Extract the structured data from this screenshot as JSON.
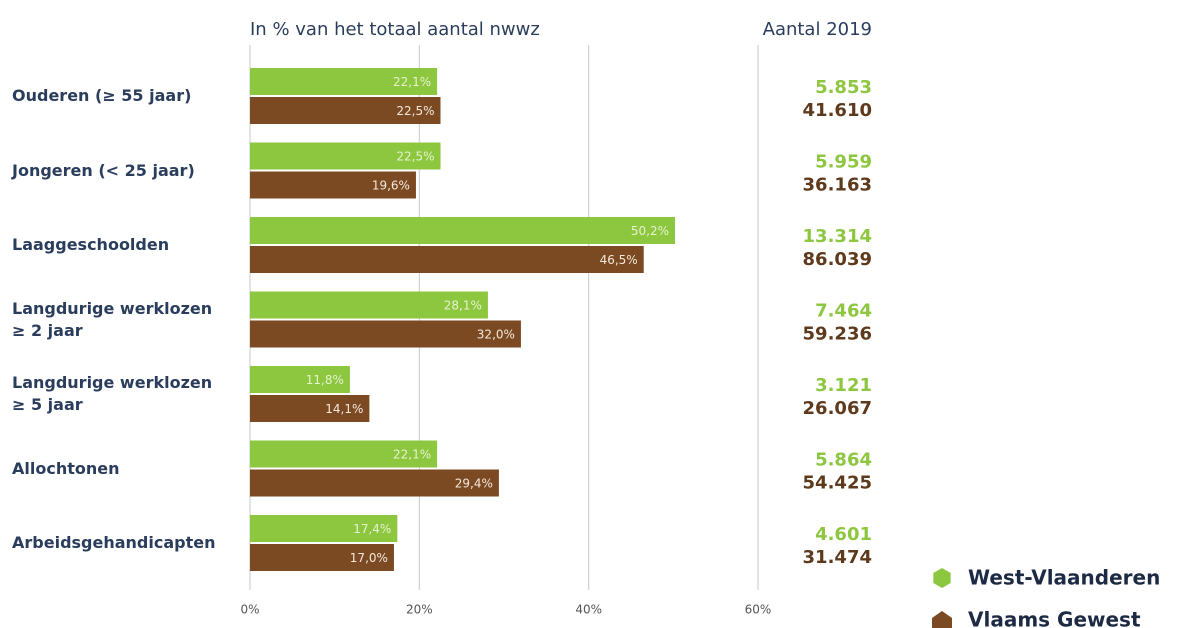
{
  "chart_data": {
    "type": "bar",
    "orientation": "horizontal",
    "subtitle": "In % van het totaal aantal nwwz",
    "count_header": "Aantal 2019",
    "categories": [
      "Ouderen (≥ 55 jaar)",
      "Jongeren (< 25 jaar)",
      "Laaggeschoolden",
      "Langdurige werklozen\n≥ 2 jaar",
      "Langdurige werklozen\n≥ 5 jaar",
      "Allochtonen",
      "Arbeidsgehandicapten"
    ],
    "series": [
      {
        "name": "West-Vlaanderen",
        "color": "#8dc63f",
        "label_color": "#e6f3cf",
        "values": [
          22.1,
          22.5,
          50.2,
          28.1,
          11.8,
          22.1,
          17.4
        ],
        "value_labels": [
          "22,1%",
          "22,5%",
          "50,2%",
          "28,1%",
          "11,8%",
          "22,1%",
          "17,4%"
        ],
        "counts": [
          5853,
          5959,
          13314,
          7464,
          3121,
          5864,
          4601
        ],
        "count_labels": [
          "5.853",
          "5.959",
          "13.314",
          "7.464",
          "3.121",
          "5.864",
          "4.601"
        ]
      },
      {
        "name": "Vlaams Gewest",
        "color": "#7b4a23",
        "label_color": "#f4e8da",
        "values": [
          22.5,
          19.6,
          46.5,
          32.0,
          14.1,
          29.4,
          17.0
        ],
        "value_labels": [
          "22,5%",
          "19,6%",
          "46,5%",
          "32,0%",
          "14,1%",
          "29,4%",
          "17,0%"
        ],
        "counts": [
          41610,
          36163,
          86039,
          59236,
          26067,
          54425,
          31474
        ],
        "count_labels": [
          "41.610",
          "36.163",
          "86.039",
          "59.236",
          "26.067",
          "54.425",
          "31.474"
        ]
      }
    ],
    "xlim": [
      0,
      60
    ],
    "xticks": [
      {
        "value": 0,
        "label": "0%"
      },
      {
        "value": 20,
        "label": "20%"
      },
      {
        "value": 40,
        "label": "40%"
      },
      {
        "value": 60,
        "label": "60%"
      }
    ],
    "grid": true
  }
}
